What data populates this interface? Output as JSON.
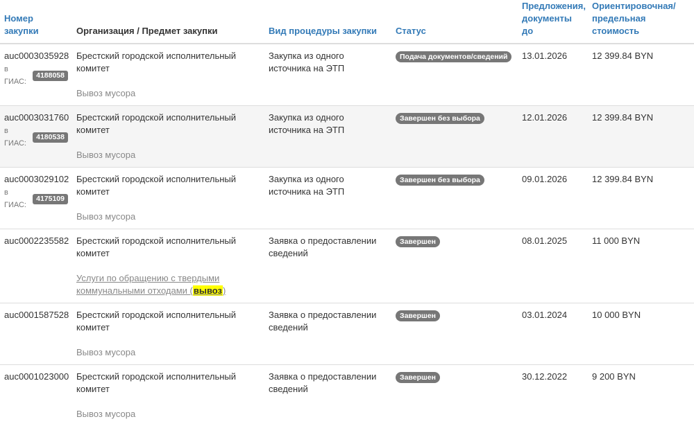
{
  "headers": [
    "Номер закупки",
    "Организация / Предмет закупки",
    "Вид процедуры закупки",
    "Статус",
    "Предложения, документы до",
    "Ориентировочная/ предельная стоимость"
  ],
  "gias_label": "в ГИАС:",
  "rows": [
    {
      "number": "auc0003035928",
      "gias": "4188058",
      "org": "Брестский городской исполнительный комитет",
      "subject": "Вывоз мусора",
      "procedure": "Закупка из одного источника на ЭТП",
      "status": "Подача документов/сведений",
      "deadline": "13.01.2026",
      "price": "12 399.84 BYN"
    },
    {
      "number": "auc0003031760",
      "gias": "4180538",
      "org": "Брестский городской исполнительный комитет",
      "subject": "Вывоз мусора",
      "procedure": "Закупка из одного источника на ЭТП",
      "status": "Завершен без выбора",
      "deadline": "12.01.2026",
      "price": "12 399.84 BYN"
    },
    {
      "number": "auc0003029102",
      "gias": "4175109",
      "org": "Брестский городской исполнительный комитет",
      "subject": "Вывоз мусора",
      "procedure": "Закупка из одного источника на ЭТП",
      "status": "Завершен без выбора",
      "deadline": "09.01.2026",
      "price": "12 399.84 BYN"
    },
    {
      "number": "auc0002235582",
      "org": "Брестский городской исполнительный комитет",
      "subject_link_pre": "Услуги по обращению с твердыми коммунальными отходами (",
      "subject_highlight": "вывоз",
      "subject_link_post": ")",
      "procedure": "Заявка о предоставлении сведений",
      "status": "Завершен",
      "deadline": "08.01.2025",
      "price": "11 000 BYN"
    },
    {
      "number": "auc0001587528",
      "org": "Брестский городской исполнительный комитет",
      "subject": "Вывоз мусора",
      "procedure": "Заявка о предоставлении сведений",
      "status": "Завершен",
      "deadline": "03.01.2024",
      "price": "10 000 BYN"
    },
    {
      "number": "auc0001023000",
      "org": "Брестский городской исполнительный комитет",
      "subject": "Вывоз мусора",
      "procedure": "Заявка о предоставлении сведений",
      "status": "Завершен",
      "deadline": "30.12.2022",
      "price": "9 200 BYN"
    }
  ]
}
